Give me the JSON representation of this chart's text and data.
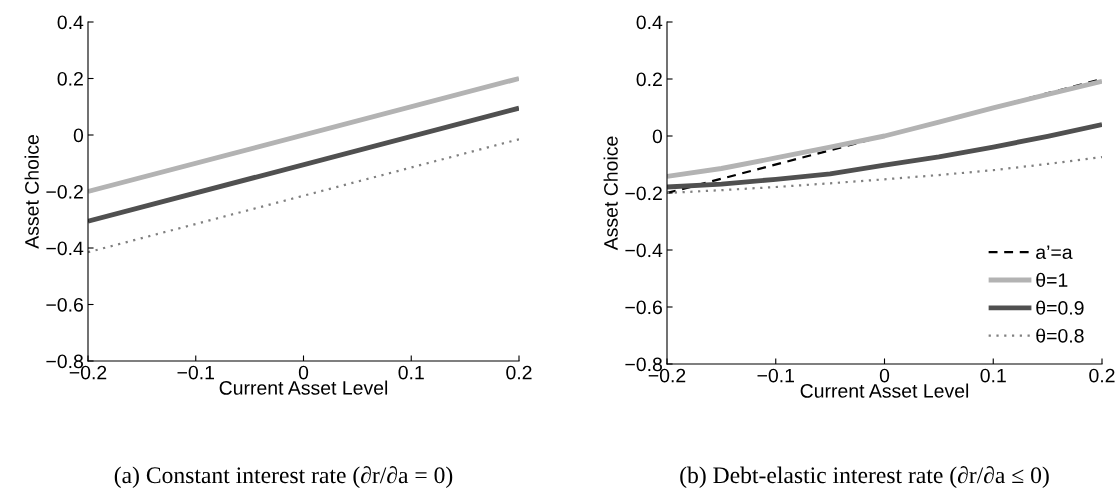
{
  "chart_data": [
    {
      "type": "line",
      "xlabel": "Current Asset Level",
      "ylabel": "Asset Choice",
      "xlim": [
        -0.2,
        0.2
      ],
      "ylim": [
        -0.8,
        0.4
      ],
      "xticks": [
        -0.2,
        -0.1,
        0,
        0.1,
        0.2
      ],
      "yticks": [
        -0.8,
        -0.6,
        -0.4,
        -0.2,
        0,
        0.2,
        0.4
      ],
      "grid": false,
      "legend": false,
      "x": [
        -0.2,
        0.2
      ],
      "series": [
        {
          "color": "#b3b3b3",
          "line_style": "solid",
          "values": [
            -0.2,
            0.2
          ]
        },
        {
          "color": "#505050",
          "line_style": "solid",
          "values": [
            -0.305,
            0.095
          ]
        },
        {
          "color": "#808080",
          "line_style": "dotted",
          "values": [
            -0.415,
            -0.015
          ]
        }
      ],
      "annotations": [
        "(a) Constant interest rate (∂r/∂a = 0)"
      ]
    },
    {
      "type": "line",
      "xlabel": "Current Asset Level",
      "ylabel": "Asset Choice",
      "xlim": [
        -0.2,
        0.2
      ],
      "ylim": [
        -0.8,
        0.4
      ],
      "xticks": [
        -0.2,
        -0.1,
        0,
        0.1,
        0.2
      ],
      "yticks": [
        -0.8,
        -0.6,
        -0.4,
        -0.2,
        0,
        0.2,
        0.4
      ],
      "grid": false,
      "legend": "bottom right",
      "x": [
        -0.2,
        -0.15,
        -0.1,
        -0.05,
        0,
        0.05,
        0.1,
        0.15,
        0.2
      ],
      "series": [
        {
          "name": "a’=a",
          "color": "#000000",
          "line_style": "dashed",
          "x": [
            -0.2,
            0.2
          ],
          "values": [
            -0.2,
            0.2
          ]
        },
        {
          "name": "θ=1",
          "color": "#b3b3b3",
          "line_style": "solid",
          "values": [
            -0.142,
            -0.114,
            -0.077,
            -0.039,
            0,
            0.049,
            0.099,
            0.146,
            0.192
          ]
        },
        {
          "name": "θ=0.9",
          "color": "#505050",
          "line_style": "solid",
          "values": [
            -0.179,
            -0.169,
            -0.152,
            -0.133,
            -0.102,
            -0.073,
            -0.039,
            -0.001,
            0.04
          ]
        },
        {
          "name": "θ=0.8",
          "color": "#808080",
          "line_style": "dotted",
          "values": [
            -0.2,
            -0.19,
            -0.179,
            -0.166,
            -0.152,
            -0.137,
            -0.12,
            -0.098,
            -0.074
          ]
        }
      ],
      "annotations": [
        "(b) Debt-elastic interest rate (∂r/∂a ≤ 0)"
      ]
    }
  ]
}
